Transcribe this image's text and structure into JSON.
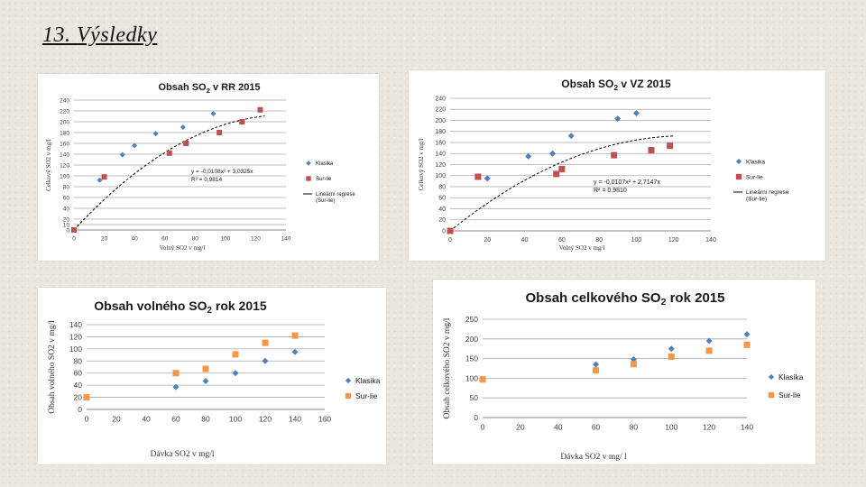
{
  "slide": {
    "title": "13. Výsledky"
  },
  "chart_data": [
    {
      "type": "scatter",
      "title_main": "Obsah SO",
      "title_sub": "2",
      "title_rest": " v RR 2015",
      "ylabel": "Celkový SO2 v mg/l",
      "xlabel": "Volný SO2 v mg/l",
      "xlim": [
        0,
        140
      ],
      "ylim": [
        0,
        240
      ],
      "xticks": [
        0,
        20,
        40,
        60,
        80,
        100,
        120,
        140
      ],
      "yticks": [
        0,
        10,
        20,
        40,
        60,
        80,
        100,
        120,
        140,
        160,
        180,
        200,
        220,
        240
      ],
      "grid": true,
      "series": [
        {
          "name": "Klasika",
          "marker": "diamond",
          "color": "#4f81bd",
          "points": [
            [
              17,
              92
            ],
            [
              32,
              139
            ],
            [
              40,
              156
            ],
            [
              54,
              178
            ],
            [
              72,
              190
            ],
            [
              92,
              215
            ]
          ]
        },
        {
          "name": "Sur-lie",
          "marker": "square",
          "color": "#c0504d",
          "points": [
            [
              0,
              0
            ],
            [
              20,
              98
            ],
            [
              63,
              142
            ],
            [
              74,
              160
            ],
            [
              96,
              180
            ],
            [
              111,
              200
            ],
            [
              123,
              222
            ]
          ]
        }
      ],
      "trendline": {
        "name": "Lineární regrese (Sur-lie)",
        "a": -0.0108,
        "b": 3.0325,
        "x_from": 0,
        "x_to": 127
      },
      "equation": "y = -0,0108x² + 3,0325x",
      "r2": "R² = 0,9814",
      "legend_position": "right"
    },
    {
      "type": "scatter",
      "title_main": "Obsah SO",
      "title_sub": "2",
      "title_rest": " v VZ 2015",
      "ylabel": "Celkový SO2 v mg/l",
      "xlabel": "Volný SO2 v mg/l",
      "xlim": [
        0,
        140
      ],
      "ylim": [
        0,
        240
      ],
      "xticks": [
        0,
        20,
        40,
        60,
        80,
        100,
        120,
        140
      ],
      "yticks": [
        0,
        20,
        40,
        60,
        80,
        100,
        120,
        140,
        160,
        180,
        200,
        220,
        240
      ],
      "grid": true,
      "series": [
        {
          "name": "Klasika",
          "marker": "diamond",
          "color": "#4f81bd",
          "points": [
            [
              20,
              95
            ],
            [
              42,
              135
            ],
            [
              55,
              140
            ],
            [
              65,
              172
            ],
            [
              90,
              203
            ],
            [
              100,
              213
            ]
          ]
        },
        {
          "name": "Sur-lie",
          "marker": "square",
          "color": "#c0504d",
          "points": [
            [
              0,
              0
            ],
            [
              15,
              98
            ],
            [
              57,
              103
            ],
            [
              60,
              112
            ],
            [
              88,
              137
            ],
            [
              108,
              146
            ],
            [
              118,
              154
            ]
          ]
        }
      ],
      "trendline": {
        "name": "Lineární regrese (Sur-lie)",
        "a": -0.0107,
        "b": 2.7147,
        "x_from": 0,
        "x_to": 120
      },
      "equation": "y = -0,0107x² + 2,7147x",
      "r2": "R² = 0,9810",
      "legend_position": "right"
    },
    {
      "type": "scatter",
      "title_main": "Obsah volného SO",
      "title_sub": "2",
      "title_rest": " rok 2015",
      "ylabel": "Obsah volného SO2 v mg/l",
      "xlabel": "Dávka SO2 v mg/l",
      "xlim": [
        0,
        160
      ],
      "ylim": [
        0,
        140
      ],
      "xticks": [
        0,
        20,
        40,
        60,
        80,
        100,
        120,
        140,
        160
      ],
      "yticks": [
        0,
        20,
        40,
        60,
        80,
        100,
        120,
        140
      ],
      "grid": true,
      "series": [
        {
          "name": "Klasika",
          "marker": "diamond",
          "color": "#4f81bd",
          "points": [
            [
              60,
              37
            ],
            [
              80,
              47
            ],
            [
              100,
              60
            ],
            [
              120,
              80
            ],
            [
              140,
              95
            ]
          ]
        },
        {
          "name": "Sur-lie",
          "marker": "square",
          "color": "#f79646",
          "points": [
            [
              0,
              20
            ],
            [
              60,
              60
            ],
            [
              80,
              67
            ],
            [
              100,
              91
            ],
            [
              120,
              110
            ],
            [
              140,
              122
            ]
          ]
        }
      ],
      "legend_position": "right"
    },
    {
      "type": "scatter",
      "title_main": "Obsah celkového SO",
      "title_sub": "2",
      "title_rest": " rok 2015",
      "ylabel": "Obsah celkového SO2 v mg/l",
      "xlabel": "Dávka SO2 v mg/ l",
      "xlim": [
        0,
        140
      ],
      "ylim": [
        0,
        250
      ],
      "xticks": [
        0,
        20,
        40,
        60,
        80,
        100,
        120,
        140
      ],
      "yticks": [
        0,
        50,
        100,
        150,
        200,
        250
      ],
      "grid": true,
      "series": [
        {
          "name": "Klasika",
          "marker": "diamond",
          "color": "#4f81bd",
          "points": [
            [
              0,
              97
            ],
            [
              60,
              135
            ],
            [
              80,
              148
            ],
            [
              100,
              175
            ],
            [
              120,
              195
            ],
            [
              140,
              212
            ]
          ]
        },
        {
          "name": "Sur-lie",
          "marker": "square",
          "color": "#f79646",
          "points": [
            [
              0,
              97
            ],
            [
              60,
              120
            ],
            [
              80,
              136
            ],
            [
              100,
              155
            ],
            [
              120,
              170
            ],
            [
              140,
              185
            ]
          ]
        }
      ],
      "legend_position": "right"
    }
  ]
}
